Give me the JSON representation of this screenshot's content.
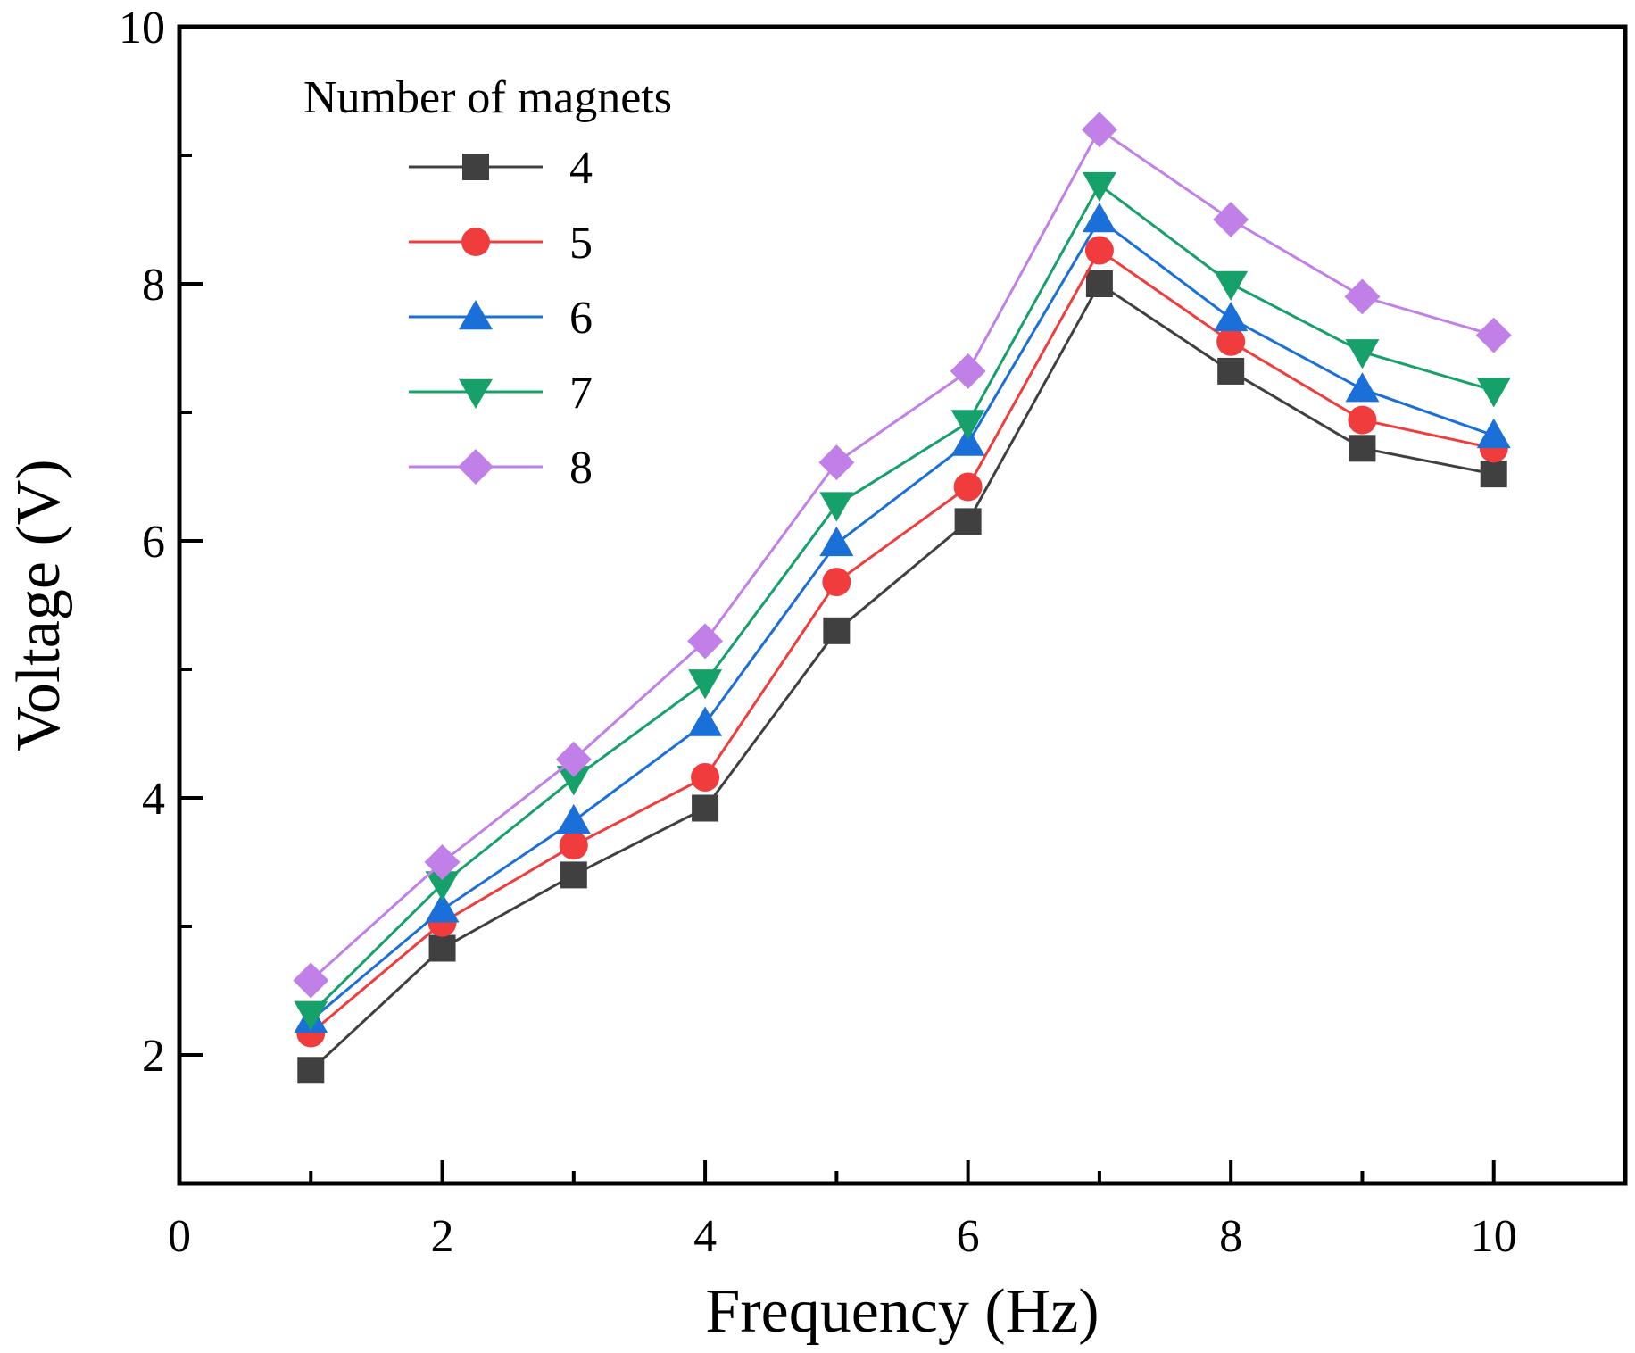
{
  "chart_data": {
    "type": "line",
    "title": "",
    "xlabel": "Frequency (Hz)",
    "ylabel": "Voltage (V)",
    "xlim": [
      0,
      11
    ],
    "ylim": [
      1.0,
      10
    ],
    "x_ticks": [
      0,
      2,
      4,
      6,
      8,
      10
    ],
    "y_ticks": [
      2,
      4,
      6,
      8,
      10
    ],
    "x_tick_labels": [
      "0",
      "2",
      "4",
      "6",
      "8",
      "10"
    ],
    "y_tick_labels": [
      "2",
      "4",
      "6",
      "8",
      "10"
    ],
    "x_minor_ticks": [
      1,
      3,
      5,
      7,
      9
    ],
    "y_minor_ticks": [
      3,
      5,
      7,
      9
    ],
    "grid": false,
    "legend_title": "Number of magnets",
    "legend_position": "top-left",
    "x": [
      1,
      2,
      3,
      4,
      5,
      6,
      7,
      8,
      9,
      10
    ],
    "series": [
      {
        "name": "4",
        "marker": "square",
        "color": "#404040",
        "values": [
          1.88,
          2.83,
          3.4,
          3.92,
          5.3,
          6.15,
          8.0,
          7.32,
          6.72,
          6.52
        ]
      },
      {
        "name": "5",
        "marker": "circle",
        "color": "#f03c3c",
        "values": [
          2.17,
          3.03,
          3.63,
          4.16,
          5.68,
          6.42,
          8.26,
          7.55,
          6.94,
          6.72
        ]
      },
      {
        "name": "6",
        "marker": "triangle-up",
        "color": "#1a6fd8",
        "values": [
          2.27,
          3.13,
          3.82,
          4.58,
          5.98,
          6.76,
          8.5,
          7.73,
          7.18,
          6.82
        ]
      },
      {
        "name": "7",
        "marker": "triangle-down",
        "color": "#16a06a",
        "values": [
          2.32,
          3.33,
          4.15,
          4.9,
          6.28,
          6.92,
          8.77,
          8.0,
          7.47,
          7.17
        ]
      },
      {
        "name": "8",
        "marker": "diamond",
        "color": "#c080e8",
        "values": [
          2.58,
          3.5,
          4.3,
          5.22,
          6.61,
          7.32,
          9.2,
          8.5,
          7.9,
          7.6
        ]
      }
    ]
  }
}
